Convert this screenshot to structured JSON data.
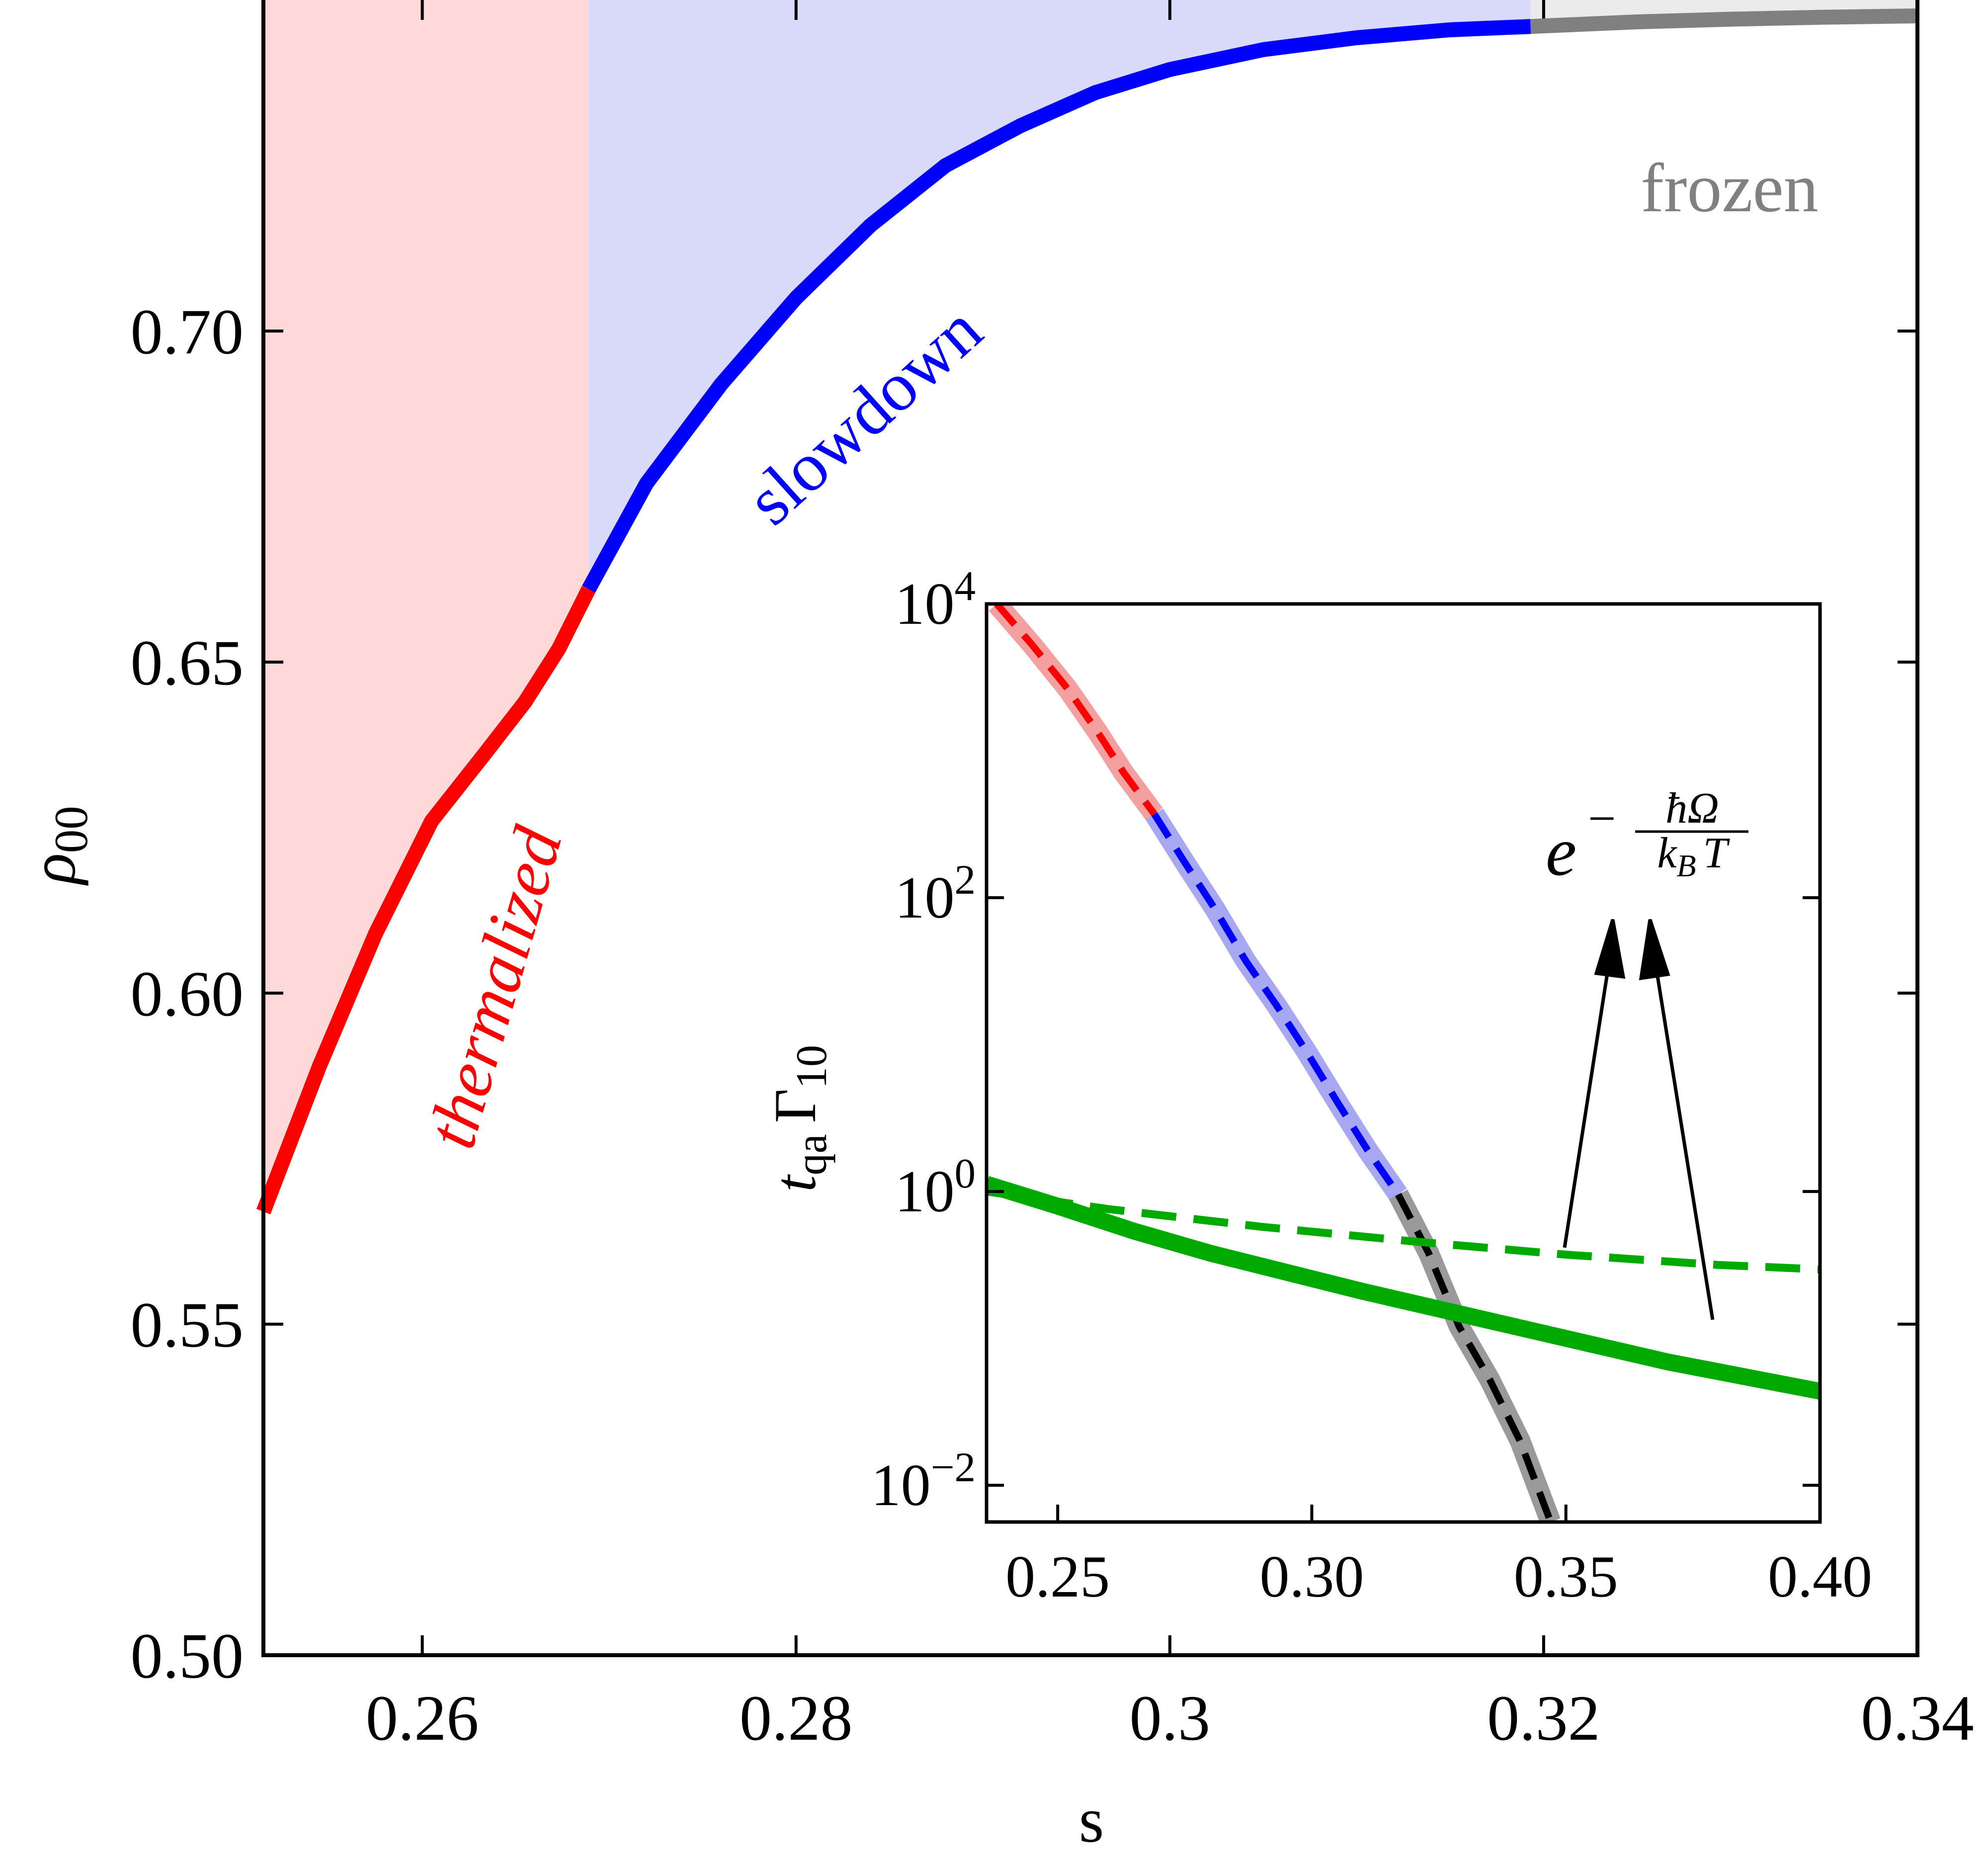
{
  "chart_data": [
    {
      "type": "line",
      "panel": "main",
      "xlabel": "s",
      "ylabel": "ρ",
      "ylabel_sub": "00",
      "xlim": [
        0.2515,
        0.34
      ],
      "ylim": [
        0.5,
        0.75
      ],
      "xticks": [
        0.26,
        0.28,
        0.3,
        0.32,
        0.34
      ],
      "xtick_labels": [
        "0.26",
        "0.28",
        "0.3",
        "0.32",
        "0.34"
      ],
      "yticks": [
        0.5,
        0.55,
        0.6,
        0.65,
        0.7
      ],
      "ytick_labels": [
        "0.50",
        "0.55",
        "0.60",
        "0.65",
        "0.70"
      ],
      "grid": false,
      "regions": [
        {
          "name": "thermalized",
          "from": 0.2515,
          "to": 0.2689,
          "color": "#ffd9d9"
        },
        {
          "name": "slowdown",
          "from": 0.2689,
          "to": 0.3193,
          "color": "#d9d9fa"
        },
        {
          "name": "frozen",
          "from": 0.3193,
          "to": 0.34,
          "color": "#ebebeb"
        }
      ],
      "annotations": [
        {
          "text": "thermalized",
          "color": "#ff0000"
        },
        {
          "text": "slowdown",
          "color": "#0000ff"
        },
        {
          "text": "frozen",
          "color": "#808080"
        }
      ],
      "series": [
        {
          "color": "#ff0000",
          "points": [
            [
              0.2515,
              0.567
            ],
            [
              0.2545,
              0.589
            ],
            [
              0.2575,
              0.609
            ],
            [
              0.2605,
              0.626
            ],
            [
              0.2633,
              0.636
            ],
            [
              0.2655,
              0.644
            ],
            [
              0.2673,
              0.652
            ],
            [
              0.2689,
              0.661
            ]
          ]
        },
        {
          "color": "#0000ff",
          "points": [
            [
              0.2689,
              0.661
            ],
            [
              0.272,
              0.677
            ],
            [
              0.276,
              0.692
            ],
            [
              0.28,
              0.705
            ],
            [
              0.284,
              0.716
            ],
            [
              0.288,
              0.725
            ],
            [
              0.292,
              0.731
            ],
            [
              0.296,
              0.736
            ],
            [
              0.3,
              0.7395
            ],
            [
              0.305,
              0.7425
            ],
            [
              0.31,
              0.7443
            ],
            [
              0.315,
              0.7455
            ],
            [
              0.3193,
              0.746
            ]
          ]
        },
        {
          "color": "#808080",
          "points": [
            [
              0.3193,
              0.746
            ],
            [
              0.325,
              0.7467
            ],
            [
              0.33,
              0.7471
            ],
            [
              0.335,
              0.7474
            ],
            [
              0.34,
              0.7476
            ]
          ]
        }
      ]
    },
    {
      "type": "line",
      "panel": "inset",
      "xlabel": "",
      "ylabel": "t",
      "ylabel_sub1": "qa",
      "ylabel_mid": "Γ",
      "ylabel_sub2": "10",
      "xlim": [
        0.236,
        0.4
      ],
      "ylim_log10": [
        -2.25,
        4.0
      ],
      "y_scale": "log",
      "xticks": [
        0.25,
        0.3,
        0.35,
        0.4
      ],
      "xtick_labels": [
        "0.25",
        "0.30",
        "0.35",
        "0.40"
      ],
      "yticks_log10": [
        -2,
        0,
        2,
        4
      ],
      "ytick_base": "10",
      "ytick_exponents": [
        "−2",
        "0",
        "2",
        "4"
      ],
      "annotation": {
        "text": "e",
        "exponent_sign": "−",
        "numerator": "ħΩ",
        "denominator": "k",
        "denominator_sub": "B",
        "denominator_tail": "T"
      },
      "series": [
        {
          "style": "dashed",
          "color": "#ff0000",
          "band_color": "#f4a0a0",
          "points": [
            [
              0.238,
              4.0
            ],
            [
              0.245,
              3.72
            ],
            [
              0.252,
              3.42
            ],
            [
              0.258,
              3.12
            ],
            [
              0.263,
              2.85
            ],
            [
              0.269,
              2.57
            ]
          ]
        },
        {
          "style": "dashed",
          "color": "#0000ff",
          "band_color": "#a8a8f2",
          "points": [
            [
              0.269,
              2.57
            ],
            [
              0.275,
              2.24
            ],
            [
              0.281,
              1.92
            ],
            [
              0.287,
              1.57
            ],
            [
              0.293,
              1.27
            ],
            [
              0.299,
              0.95
            ],
            [
              0.305,
              0.61
            ],
            [
              0.311,
              0.28
            ],
            [
              0.317,
              -0.02
            ]
          ]
        },
        {
          "style": "dashed",
          "color": "#000000",
          "band_color": "#9a9a9a",
          "points": [
            [
              0.317,
              -0.02
            ],
            [
              0.323,
              -0.42
            ],
            [
              0.329,
              -0.92
            ],
            [
              0.335,
              -1.28
            ],
            [
              0.341,
              -1.7
            ],
            [
              0.347,
              -2.25
            ]
          ]
        },
        {
          "style": "solid",
          "color": "#00aa00",
          "points": [
            [
              0.236,
              0.05
            ],
            [
              0.25,
              -0.1
            ],
            [
              0.265,
              -0.27
            ],
            [
              0.28,
              -0.42
            ],
            [
              0.295,
              -0.55
            ],
            [
              0.31,
              -0.68
            ],
            [
              0.325,
              -0.8
            ],
            [
              0.34,
              -0.92
            ],
            [
              0.355,
              -1.04
            ],
            [
              0.37,
              -1.16
            ],
            [
              0.385,
              -1.26
            ],
            [
              0.4,
              -1.36
            ]
          ]
        },
        {
          "style": "dashed",
          "color": "#00aa00",
          "points": [
            [
              0.236,
              0.0
            ],
            [
              0.26,
              -0.12
            ],
            [
              0.29,
              -0.24
            ],
            [
              0.32,
              -0.34
            ],
            [
              0.35,
              -0.43
            ],
            [
              0.38,
              -0.5
            ],
            [
              0.4,
              -0.53
            ]
          ]
        }
      ]
    }
  ]
}
